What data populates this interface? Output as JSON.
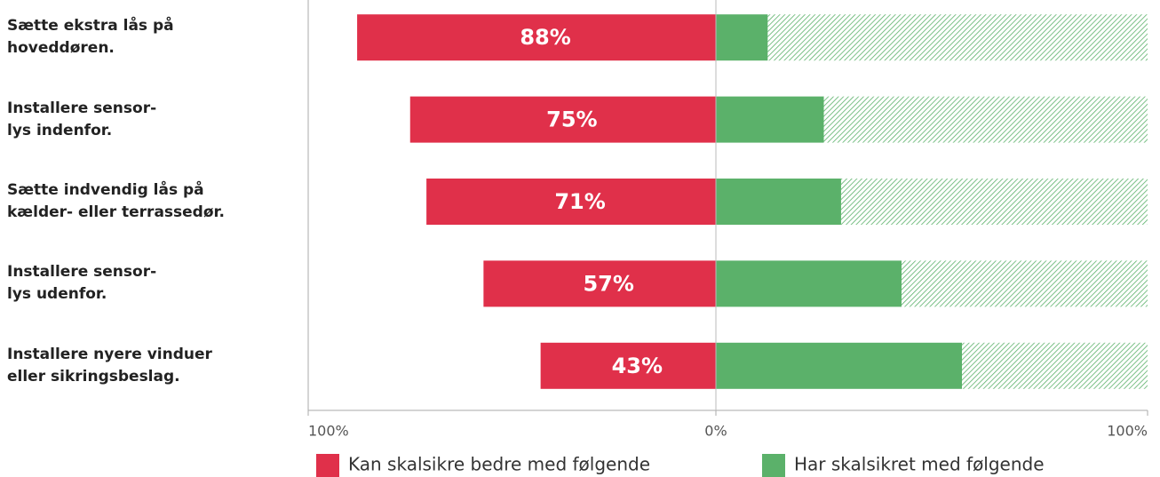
{
  "chart_data": {
    "type": "diverging-bar",
    "categories": [
      "Sætte ekstra lås på\nhoveddøren.",
      "Installere sensor-\nlys indenfor.",
      "Sætte indvendig lås på\nkælder- eller terrassedør.",
      "Installere sensor-\nlys udenfor.",
      "Installere nyere vinduer\neller sikringsbeslag."
    ],
    "series": [
      {
        "name": "Kan skalsikre bedre med følgende",
        "color": "#e0304a",
        "side": "left",
        "values": [
          88,
          75,
          71,
          57,
          43
        ],
        "value_labels": [
          "88%",
          "75%",
          "71%",
          "57%",
          "43%"
        ]
      },
      {
        "name": "Har skalsikret med følgende",
        "color": "#5bb16a",
        "side": "right",
        "values": [
          12,
          25,
          29,
          43,
          57
        ]
      }
    ],
    "xlim": [
      -100,
      100
    ],
    "xticks": [
      {
        "value": -100,
        "label": "100%"
      },
      {
        "value": 0,
        "label": "0%"
      },
      {
        "value": 100,
        "label": "100%"
      }
    ]
  }
}
